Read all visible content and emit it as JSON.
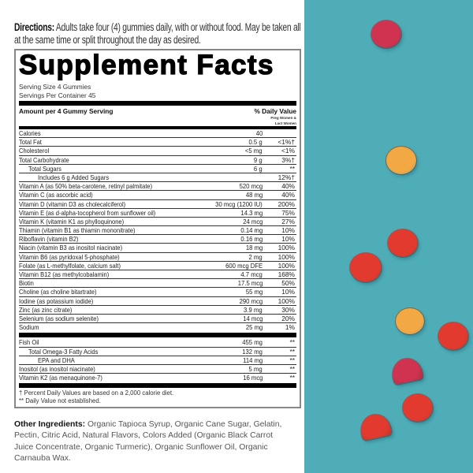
{
  "directions": {
    "label": "Directions:",
    "text": " Adults take four (4) gummies daily, with or without food. May be taken all at the same time or split throughout the day as desired."
  },
  "facts": {
    "title": "Supplement Facts",
    "serving_size": "Serving Size 4 Gummies",
    "servings_per_container": "Servings Per Container 45",
    "amount_header": "Amount per 4 Gummy Serving",
    "dv_header": "% Daily Value",
    "dv_sub1": "Preg Women &",
    "dv_sub2": "Lact Women",
    "rows": [
      {
        "name": "Calories",
        "amount": "40",
        "dv": "",
        "indent": 0
      },
      {
        "name": "Total Fat",
        "amount": "0.5 g",
        "dv": "<1%†",
        "indent": 0
      },
      {
        "name": "Cholesterol",
        "amount": "<5 mg",
        "dv": "<1%",
        "indent": 0
      },
      {
        "name": "Total Carbohydrate",
        "amount": "9 g",
        "dv": "3%†",
        "indent": 0
      },
      {
        "name": "Total Sugars",
        "amount": "6 g",
        "dv": "**",
        "indent": 1
      },
      {
        "name": "Includes 6 g Added Sugars",
        "amount": "",
        "dv": "12%†",
        "indent": 2
      },
      {
        "name": "Vitamin A (as 50% beta-carotene, retinyl palmitate)",
        "amount": "520 mcg",
        "dv": "40%",
        "indent": 0
      },
      {
        "name": "Vitamin C (as ascorbic acid)",
        "amount": "48 mg",
        "dv": "40%",
        "indent": 0
      },
      {
        "name": "Vitamin D (vitamin D3 as cholecalciferol)",
        "amount": "30 mcg (1200 IU)",
        "dv": "200%",
        "indent": 0
      },
      {
        "name": "Vitamin E (as d-alpha-tocopherol from sunflower oil)",
        "amount": "14.3 mg",
        "dv": "75%",
        "indent": 0
      },
      {
        "name": "Vitamin K (vitamin K1 as phylloquinone)",
        "amount": "24 mcg",
        "dv": "27%",
        "indent": 0
      },
      {
        "name": "Thiamin (vitamin B1 as thiamin mononitrate)",
        "amount": "0.14 mg",
        "dv": "10%",
        "indent": 0
      },
      {
        "name": "Riboflavin (vitamin B2)",
        "amount": "0.16 mg",
        "dv": "10%",
        "indent": 0
      },
      {
        "name": "Niacin (vitamin B3 as inositol niacinate)",
        "amount": "18 mg",
        "dv": "100%",
        "indent": 0
      },
      {
        "name": "Vitamin B6 (as pyridoxal 5-phosphate)",
        "amount": "2 mg",
        "dv": "100%",
        "indent": 0
      },
      {
        "name": "Folate (as L-methylfolate, calcium salt)",
        "amount": "600 mcg DFE",
        "dv": "100%",
        "indent": 0
      },
      {
        "name": "Vitamin B12 (as methylcobalamin)",
        "amount": "4.7 mcg",
        "dv": "168%",
        "indent": 0
      },
      {
        "name": "Biotin",
        "amount": "17.5 mcg",
        "dv": "50%",
        "indent": 0
      },
      {
        "name": "Choline (as choline bitartrate)",
        "amount": "55 mg",
        "dv": "10%",
        "indent": 0
      },
      {
        "name": "Iodine (as potassium iodide)",
        "amount": "290 mcg",
        "dv": "100%",
        "indent": 0
      },
      {
        "name": "Zinc (as zinc citrate)",
        "amount": "3.9 mg",
        "dv": "30%",
        "indent": 0
      },
      {
        "name": "Selenium (as sodium selenite)",
        "amount": "14 mcg",
        "dv": "20%",
        "indent": 0
      },
      {
        "name": "Sodium",
        "amount": "25 mg",
        "dv": "1%",
        "indent": 0
      }
    ],
    "rows2": [
      {
        "name": "Fish Oil",
        "amount": "455 mg",
        "dv": "**",
        "indent": 0
      },
      {
        "name": "Total Omega-3 Fatty Acids",
        "amount": "132 mg",
        "dv": "**",
        "indent": 1
      },
      {
        "name": "EPA and DHA",
        "amount": "114 mg",
        "dv": "**",
        "indent": 2
      },
      {
        "name": "Inositol (as inositol niacinate)",
        "amount": "5 mg",
        "dv": "**",
        "indent": 0
      },
      {
        "name": "Vitamin K2 (as menaquinone-7)",
        "amount": "16 mcg",
        "dv": "**",
        "indent": 0
      }
    ],
    "footnote1": "† Percent Daily Values are based on a 2,000 calorie diet.",
    "footnote2": "** Daily Value not established."
  },
  "other_ingredients": {
    "label": "Other Ingredients:",
    "text": " Organic Tapioca Syrup, Organic Cane Sugar, Gelatin, Pectin, Citric Acid, Natural Flavors, Colors Added (Organic Black Carrot Juice Concentrate, Organic Turmeric), Organic Sunflower Oil, Organic Carnauba Wax."
  },
  "colors": {
    "background_teal": "#4eadb7",
    "gummy_red": "#e23a2e",
    "gummy_orange": "#f2a843",
    "gummy_pink": "#cf3350"
  }
}
